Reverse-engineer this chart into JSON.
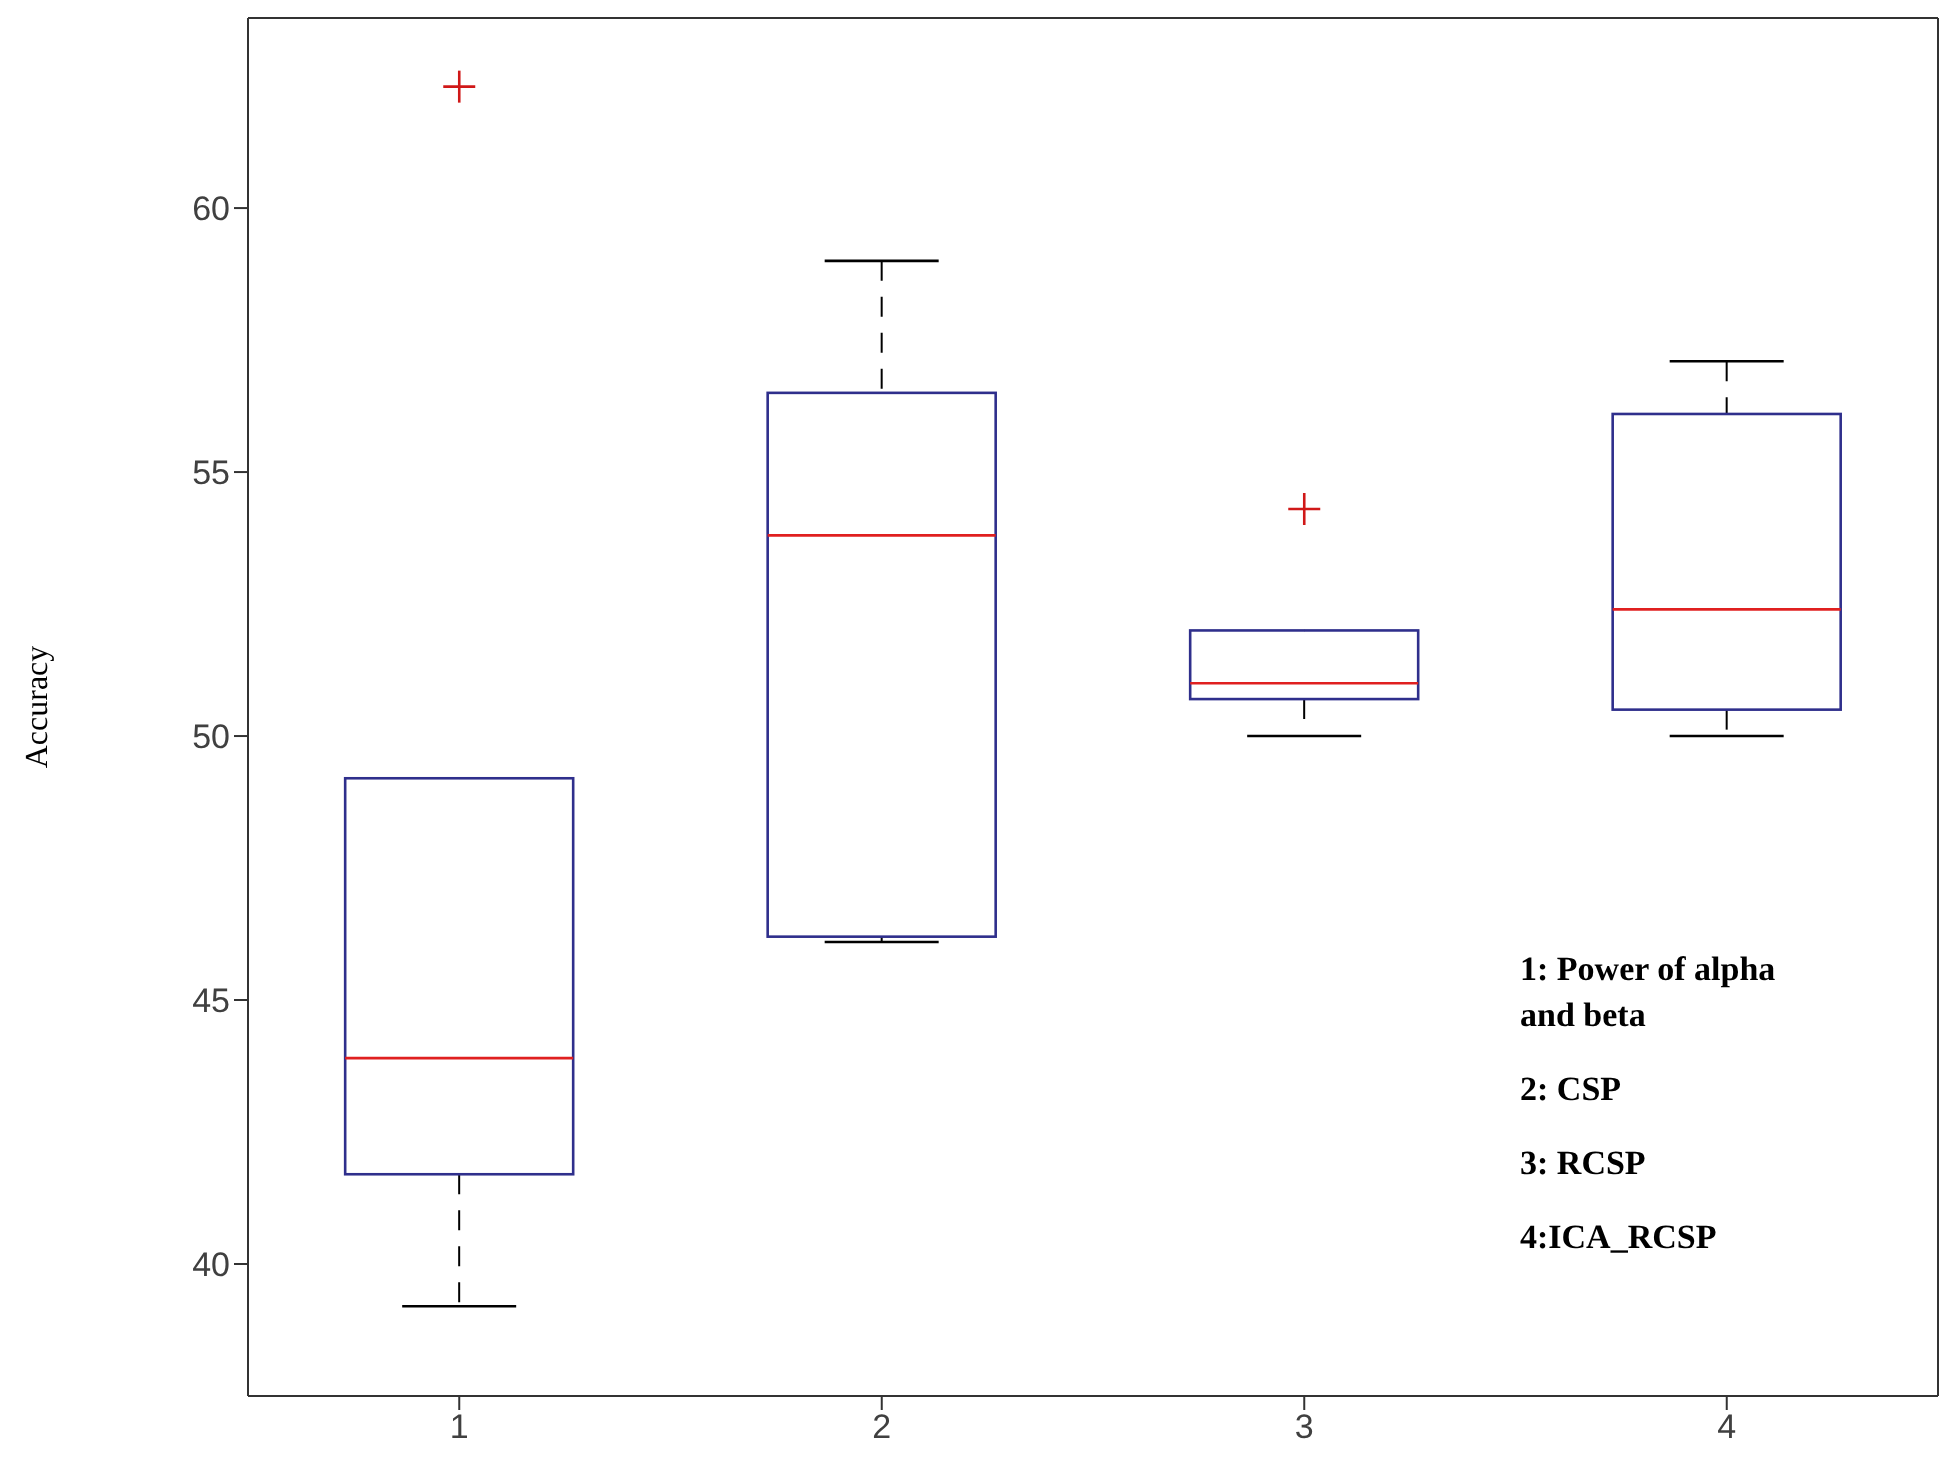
{
  "chart_data": {
    "type": "box",
    "categories": [
      "1",
      "2",
      "3",
      "4"
    ],
    "boxes": [
      {
        "low": 39.2,
        "q1": 41.7,
        "median": 43.9,
        "q3": 49.2,
        "high": 49.2,
        "outliers": [
          62.3
        ]
      },
      {
        "low": 46.1,
        "q1": 46.2,
        "median": 53.8,
        "q3": 56.5,
        "high": 59.0
      },
      {
        "low": 50.0,
        "q1": 50.7,
        "median": 51.0,
        "q3": 52.0,
        "high": 52.0,
        "outliers": [
          54.3
        ]
      },
      {
        "low": 50.0,
        "q1": 50.5,
        "median": 52.4,
        "q3": 56.1,
        "high": 57.1
      }
    ],
    "color": "#2f2f8c",
    "ylabel": "Accuracy",
    "ylim": [
      37.5,
      63.6
    ],
    "yticks": [
      40,
      45,
      50,
      55,
      60
    ],
    "grid": false,
    "annotations": [
      "1: Power of alpha and beta",
      "2: CSP",
      "3: RCSP",
      "4:ICA_RCSP"
    ]
  }
}
